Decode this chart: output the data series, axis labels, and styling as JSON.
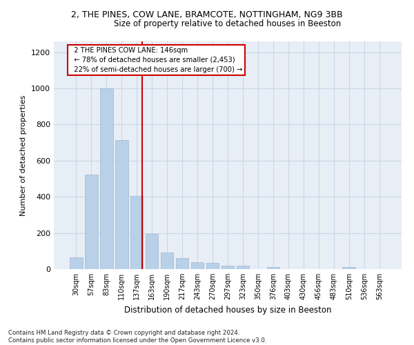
{
  "title_line1": "2, THE PINES, COW LANE, BRAMCOTE, NOTTINGHAM, NG9 3BB",
  "title_line2": "Size of property relative to detached houses in Beeston",
  "xlabel": "Distribution of detached houses by size in Beeston",
  "ylabel": "Number of detached properties",
  "footnote": "Contains HM Land Registry data © Crown copyright and database right 2024.\nContains public sector information licensed under the Open Government Licence v3.0.",
  "bin_labels": [
    "30sqm",
    "57sqm",
    "83sqm",
    "110sqm",
    "137sqm",
    "163sqm",
    "190sqm",
    "217sqm",
    "243sqm",
    "270sqm",
    "297sqm",
    "323sqm",
    "350sqm",
    "376sqm",
    "403sqm",
    "430sqm",
    "456sqm",
    "483sqm",
    "510sqm",
    "536sqm",
    "563sqm"
  ],
  "bar_values": [
    65,
    525,
    1000,
    715,
    405,
    195,
    90,
    60,
    40,
    33,
    18,
    20,
    0,
    10,
    0,
    0,
    0,
    0,
    10,
    0,
    0
  ],
  "bar_color": "#b8d0e8",
  "bar_edge_color": "#a0b8d0",
  "annotation_text": "  2 THE PINES COW LANE: 146sqm\n  ← 78% of detached houses are smaller (2,453)\n  22% of semi-detached houses are larger (700) →",
  "vline_color": "#cc0000",
  "box_color": "#cc0000",
  "ylim": [
    0,
    1260
  ],
  "yticks": [
    0,
    200,
    400,
    600,
    800,
    1000,
    1200
  ],
  "grid_color": "#c8d8e8",
  "bg_color": "#e8eef5",
  "bar_width": 0.85,
  "fig_width": 6.0,
  "fig_height": 5.0,
  "dpi": 100
}
